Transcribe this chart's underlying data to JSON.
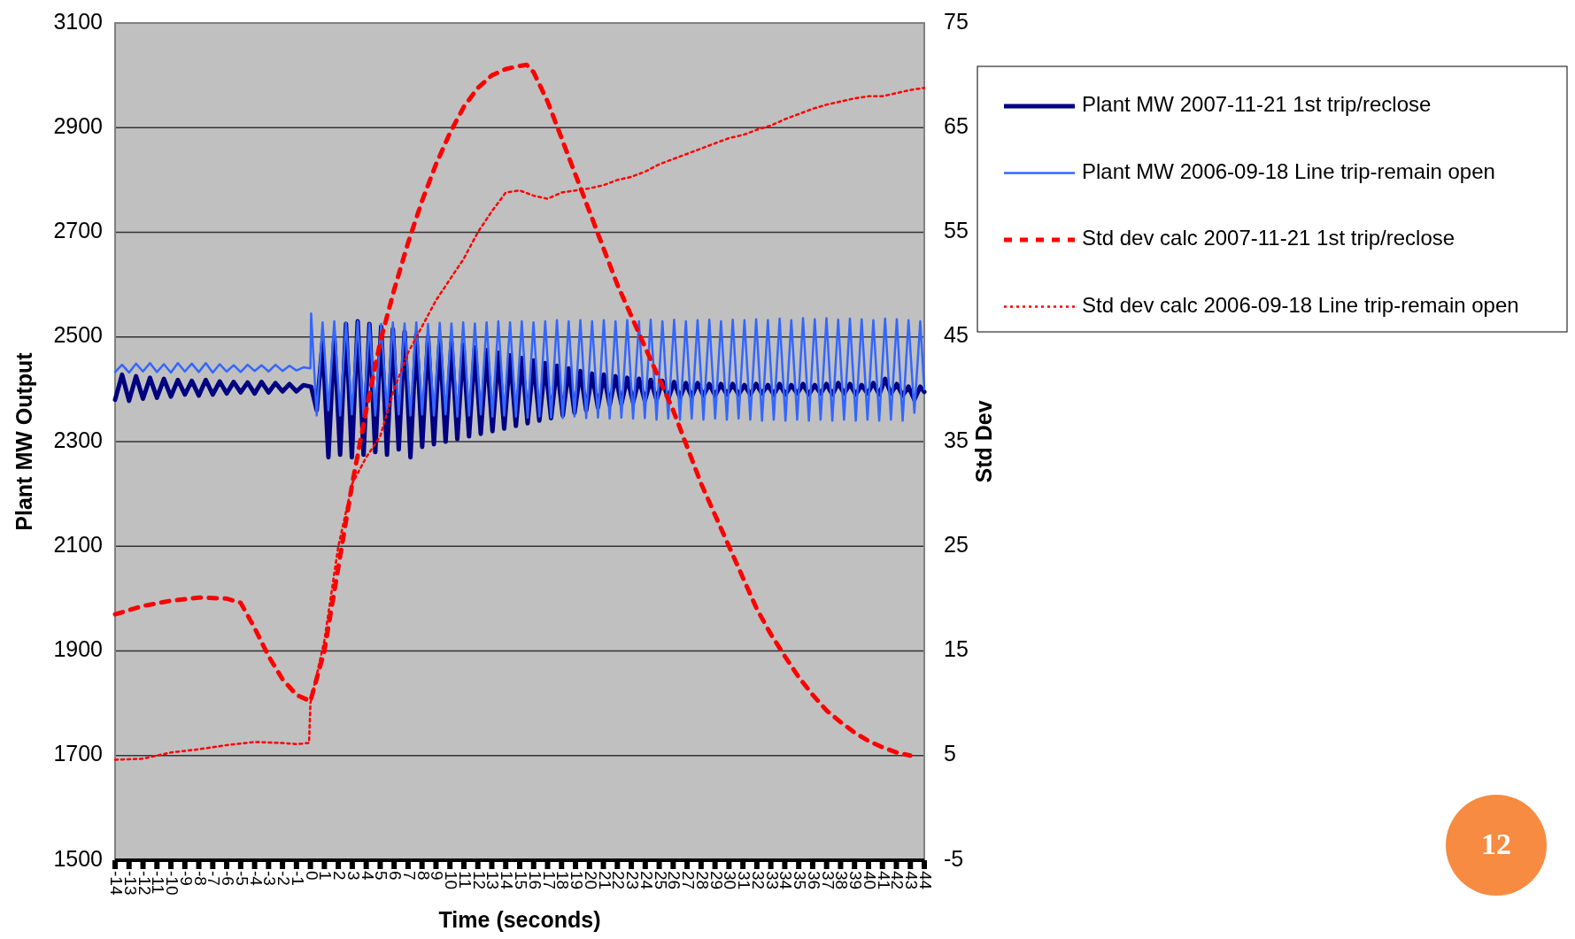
{
  "chart_data": {
    "type": "line",
    "xlabel": "Time (seconds)",
    "ylabel": "Plant MW Output",
    "y2label": "Std Dev",
    "grid": "y",
    "legend": "right",
    "xlim": [
      -14,
      44
    ],
    "xticks": [
      -14,
      -13,
      -12,
      -11,
      -10,
      -9,
      -8,
      -7,
      -6,
      -5,
      -4,
      -3,
      -2,
      -1,
      0,
      1,
      2,
      3,
      4,
      5,
      6,
      7,
      8,
      9,
      10,
      11,
      12,
      13,
      14,
      15,
      16,
      17,
      18,
      19,
      20,
      21,
      22,
      23,
      24,
      25,
      26,
      27,
      28,
      29,
      30,
      31,
      32,
      33,
      34,
      35,
      36,
      37,
      38,
      39,
      40,
      41,
      42,
      43,
      44
    ],
    "ylim": [
      1500,
      3100
    ],
    "yticks": [
      1500,
      1700,
      1900,
      2100,
      2300,
      2500,
      2700,
      2900,
      3100
    ],
    "y2lim": [
      -5,
      75
    ],
    "y2ticks": [
      -5,
      5,
      15,
      25,
      35,
      45,
      55,
      65,
      75
    ],
    "x": [
      -14,
      -13.5,
      -13,
      -12.5,
      -12,
      -11.5,
      -11,
      -10.5,
      -10,
      -9.5,
      -9,
      -8.5,
      -8,
      -7.5,
      -7,
      -6.5,
      -6,
      -5.5,
      -5,
      -4.5,
      -4,
      -3.5,
      -3,
      -2.5,
      -2,
      -1.5,
      -1,
      -0.5,
      0,
      0.05,
      0.45,
      0.87,
      1.29,
      1.71,
      2.13,
      2.55,
      2.97,
      3.39,
      3.81,
      4.23,
      4.65,
      5.07,
      5.49,
      5.91,
      6.33,
      6.75,
      7.17,
      7.59,
      8.01,
      8.43,
      8.85,
      9.27,
      9.69,
      10.11,
      10.53,
      10.95,
      11.37,
      11.79,
      12.21,
      12.63,
      13.05,
      13.47,
      13.89,
      14.31,
      14.73,
      15.15,
      15.57,
      15.99,
      16.41,
      16.83,
      17.25,
      17.67,
      18.09,
      18.51,
      18.93,
      19.35,
      19.77,
      20.19,
      20.61,
      21.03,
      21.45,
      21.87,
      22.29,
      22.71,
      23.13,
      23.55,
      23.97,
      24.39,
      24.81,
      25.23,
      25.65,
      26.07,
      26.49,
      26.91,
      27.33,
      27.75,
      28.17,
      28.59,
      29.01,
      29.43,
      29.85,
      30.27,
      30.69,
      31.11,
      31.53,
      31.95,
      32.37,
      32.79,
      33.21,
      33.63,
      34.05,
      34.47,
      34.89,
      35.31,
      35.73,
      36.15,
      36.57,
      36.99,
      37.41,
      37.83,
      38.25,
      38.67,
      39.09,
      39.51,
      39.93,
      40.35,
      40.77,
      41.19,
      41.61,
      42.03,
      42.45,
      42.87,
      43.29,
      43.71,
      44
    ],
    "series": [
      {
        "name": "Plant MW 2007-11-21 1st trip/reclose",
        "color": "#000080",
        "line_style": "solid",
        "values": [
          2380,
          2428,
          2378,
          2425,
          2382,
          2422,
          2384,
          2420,
          2386,
          2418,
          2390,
          2416,
          2388,
          2418,
          2390,
          2415,
          2392,
          2414,
          2394,
          2413,
          2392,
          2414,
          2394,
          2412,
          2396,
          2410,
          2396,
          2408,
          2405,
          2405,
          2360,
          2490,
          2270,
          2500,
          2275,
          2525,
          2270,
          2530,
          2275,
          2525,
          2280,
          2520,
          2275,
          2515,
          2285,
          2510,
          2270,
          2505,
          2290,
          2500,
          2295,
          2495,
          2300,
          2490,
          2305,
          2485,
          2310,
          2480,
          2315,
          2475,
          2320,
          2470,
          2325,
          2465,
          2330,
          2460,
          2335,
          2455,
          2340,
          2450,
          2345,
          2445,
          2350,
          2440,
          2355,
          2435,
          2360,
          2430,
          2365,
          2428,
          2370,
          2425,
          2372,
          2422,
          2375,
          2420,
          2378,
          2418,
          2380,
          2416,
          2382,
          2414,
          2384,
          2412,
          2386,
          2412,
          2388,
          2410,
          2388,
          2410,
          2390,
          2410,
          2390,
          2408,
          2390,
          2410,
          2392,
          2408,
          2390,
          2410,
          2390,
          2408,
          2392,
          2410,
          2390,
          2408,
          2392,
          2410,
          2390,
          2412,
          2392,
          2410,
          2390,
          2408,
          2392,
          2412,
          2390,
          2420,
          2392,
          2410,
          2388,
          2405,
          2380,
          2405,
          2395
        ]
      },
      {
        "name": "Plant MW 2006-09-18 Line trip-remain open",
        "color": "#3366ff",
        "line_style": "solid",
        "values": [
          2433,
          2447,
          2432,
          2449,
          2434,
          2450,
          2433,
          2448,
          2432,
          2450,
          2434,
          2449,
          2433,
          2450,
          2432,
          2448,
          2434,
          2446,
          2433,
          2447,
          2435,
          2446,
          2434,
          2447,
          2435,
          2445,
          2436,
          2442,
          2440,
          2545,
          2350,
          2528,
          2360,
          2530,
          2350,
          2528,
          2352,
          2530,
          2348,
          2526,
          2350,
          2525,
          2355,
          2528,
          2352,
          2526,
          2350,
          2528,
          2352,
          2525,
          2350,
          2527,
          2352,
          2526,
          2348,
          2528,
          2350,
          2526,
          2352,
          2528,
          2348,
          2530,
          2350,
          2528,
          2348,
          2530,
          2346,
          2528,
          2348,
          2530,
          2346,
          2532,
          2345,
          2530,
          2348,
          2532,
          2345,
          2530,
          2346,
          2532,
          2344,
          2530,
          2346,
          2532,
          2344,
          2530,
          2345,
          2533,
          2342,
          2530,
          2344,
          2533,
          2342,
          2530,
          2344,
          2532,
          2342,
          2533,
          2344,
          2530,
          2342,
          2533,
          2344,
          2532,
          2342,
          2534,
          2340,
          2532,
          2342,
          2535,
          2340,
          2532,
          2342,
          2536,
          2340,
          2534,
          2342,
          2536,
          2340,
          2533,
          2342,
          2535,
          2340,
          2534,
          2342,
          2532,
          2340,
          2535,
          2342,
          2534,
          2340,
          2532,
          2355,
          2530,
          2400
        ]
      },
      {
        "name": "Std dev calc 2007-11-21 1st trip/reclose",
        "color": "#ff0000",
        "line_style": "dashed",
        "axis": "y2",
        "x": [
          -14,
          -12,
          -10,
          -8,
          -6,
          -5,
          -4,
          -3,
          -2,
          -1,
          0,
          1,
          2,
          3,
          4,
          5,
          6,
          7,
          8,
          9,
          10,
          11,
          12,
          13,
          14,
          15,
          15.5,
          16,
          17,
          18,
          19,
          20,
          21,
          22,
          23,
          24,
          25,
          26,
          27,
          28,
          29,
          30,
          31,
          32,
          33,
          34,
          35,
          36,
          37,
          38,
          39,
          40,
          41,
          42,
          43
        ],
        "values": [
          18.5,
          19.3,
          19.8,
          20.1,
          20,
          19.6,
          17.2,
          14.5,
          12.3,
          10.8,
          10.2,
          15,
          23,
          31,
          38,
          44.5,
          49.5,
          54,
          58,
          61.5,
          64.5,
          67,
          68.8,
          70,
          70.6,
          70.9,
          71,
          70.3,
          67.5,
          64,
          60.5,
          57,
          53.5,
          50,
          47,
          44,
          41,
          38,
          34.5,
          31,
          28,
          25,
          22,
          19,
          16.6,
          14.5,
          12.5,
          10.8,
          9.3,
          8.2,
          7.2,
          6.4,
          5.8,
          5.3,
          5
        ]
      },
      {
        "name": "Std dev calc 2006-09-18 Line trip-remain open",
        "color": "#ff0000",
        "line_style": "dotted",
        "axis": "y2",
        "x": [
          -14,
          -12,
          -10,
          -8,
          -6,
          -4,
          -2,
          -1,
          -0.1,
          0,
          1,
          2,
          3,
          4,
          5,
          6,
          7,
          8,
          9,
          10,
          11,
          12,
          13,
          14,
          15,
          16,
          17,
          18,
          19,
          20,
          21,
          22,
          23,
          24,
          25,
          26,
          27,
          28,
          29,
          30,
          31,
          32,
          33,
          34,
          35,
          36,
          37,
          38,
          39,
          40,
          41,
          42,
          43,
          44
        ],
        "values": [
          4.6,
          4.7,
          5.3,
          5.6,
          6,
          6.3,
          6.2,
          6.1,
          6.2,
          10,
          16,
          25,
          31,
          33.5,
          35.5,
          40,
          43.5,
          46,
          48.5,
          50.5,
          52.5,
          55,
          57,
          58.8,
          59,
          58.5,
          58.2,
          58.8,
          59,
          59.2,
          59.5,
          60,
          60.3,
          60.8,
          61.5,
          62,
          62.5,
          63,
          63.5,
          64,
          64.3,
          64.8,
          65.2,
          65.8,
          66.3,
          66.8,
          67.2,
          67.5,
          67.8,
          68,
          68,
          68.3,
          68.6,
          68.8
        ]
      }
    ],
    "annotations": [
      "12"
    ]
  }
}
